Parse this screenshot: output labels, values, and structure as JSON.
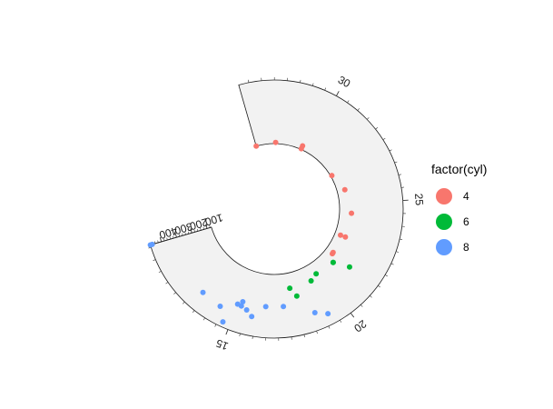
{
  "chart_data": {
    "type": "scatter",
    "coord": "polar",
    "title": "",
    "xlabel": "",
    "ylabel": "",
    "theta_axis": {
      "variable": "mpg",
      "range": [
        10.4,
        33.9
      ],
      "ticks": [
        15,
        20,
        25,
        30
      ],
      "tick_labels": [
        "15",
        "20",
        "25",
        "30"
      ]
    },
    "radius_axis": {
      "variable": "disp",
      "range": [
        71.1,
        472
      ],
      "ticks": [
        100,
        200,
        300,
        400
      ],
      "tick_labels": [
        "100",
        "200",
        "300",
        "400"
      ]
    },
    "legend": {
      "title": "factor(cyl)",
      "position": "right",
      "entries": [
        {
          "label": "4",
          "color": "#F8766D"
        },
        {
          "label": "6",
          "color": "#00BA38"
        },
        {
          "label": "8",
          "color": "#619CFF"
        }
      ]
    },
    "series": [
      {
        "name": "4",
        "color": "#F8766D",
        "points": [
          {
            "mpg": 22.8,
            "disp": 108.0
          },
          {
            "mpg": 24.4,
            "disp": 146.7
          },
          {
            "mpg": 22.8,
            "disp": 140.8
          },
          {
            "mpg": 32.4,
            "disp": 78.7
          },
          {
            "mpg": 30.4,
            "disp": 75.7
          },
          {
            "mpg": 33.9,
            "disp": 71.1
          },
          {
            "mpg": 21.5,
            "disp": 120.1
          },
          {
            "mpg": 27.3,
            "disp": 79.0
          },
          {
            "mpg": 26.0,
            "disp": 120.3
          },
          {
            "mpg": 30.4,
            "disp": 95.1
          },
          {
            "mpg": 21.4,
            "disp": 121.0
          }
        ]
      },
      {
        "name": "6",
        "color": "#00BA38",
        "points": [
          {
            "mpg": 21.0,
            "disp": 160.0
          },
          {
            "mpg": 21.0,
            "disp": 160.0
          },
          {
            "mpg": 21.4,
            "disp": 258.0
          },
          {
            "mpg": 18.1,
            "disp": 225.0
          },
          {
            "mpg": 19.2,
            "disp": 167.6
          },
          {
            "mpg": 17.8,
            "disp": 167.6
          },
          {
            "mpg": 19.7,
            "disp": 145.0
          }
        ]
      },
      {
        "name": "8",
        "color": "#619CFF",
        "points": [
          {
            "mpg": 18.7,
            "disp": 360.0
          },
          {
            "mpg": 14.3,
            "disp": 360.0
          },
          {
            "mpg": 16.4,
            "disp": 275.8
          },
          {
            "mpg": 17.3,
            "disp": 275.8
          },
          {
            "mpg": 15.2,
            "disp": 275.8
          },
          {
            "mpg": 10.4,
            "disp": 472.0
          },
          {
            "mpg": 10.4,
            "disp": 460.0
          },
          {
            "mpg": 14.7,
            "disp": 440.0
          },
          {
            "mpg": 15.5,
            "disp": 318.0
          },
          {
            "mpg": 15.2,
            "disp": 304.0
          },
          {
            "mpg": 13.3,
            "disp": 350.0
          },
          {
            "mpg": 19.2,
            "disp": 400.0
          },
          {
            "mpg": 15.8,
            "disp": 351.0
          },
          {
            "mpg": 15.0,
            "disp": 301.0
          }
        ]
      }
    ]
  }
}
